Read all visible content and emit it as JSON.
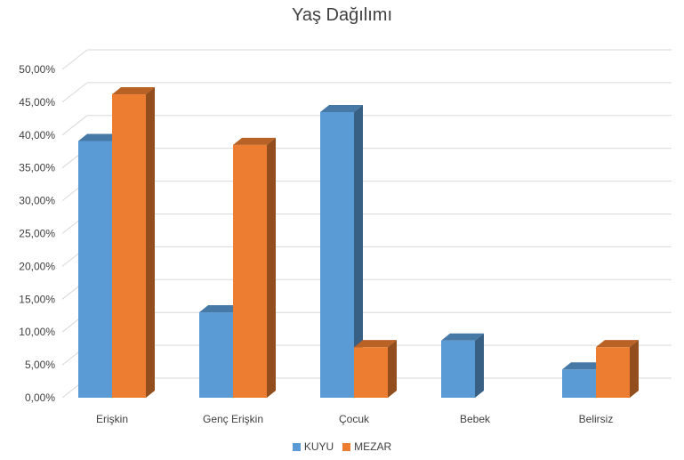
{
  "chart_data": {
    "type": "bar",
    "title": "Yaş Dağılımı",
    "categories": [
      "Erişkin",
      "Genç Erişkin",
      "Çocuk",
      "Bebek",
      "Belirsiz"
    ],
    "series": [
      {
        "name": "KUYU",
        "values": [
          39.1,
          13.0,
          43.5,
          8.7,
          4.3
        ],
        "color": "#5B9BD5"
      },
      {
        "name": "MEZAR",
        "values": [
          46.2,
          38.5,
          7.7,
          null,
          7.7
        ],
        "color": "#ED7D31"
      }
    ],
    "ylim": [
      0,
      50
    ],
    "yticks": [
      "0,00%",
      "5,00%",
      "10,00%",
      "15,00%",
      "20,00%",
      "25,00%",
      "30,00%",
      "35,00%",
      "40,00%",
      "45,00%",
      "50,00%"
    ],
    "grid": true,
    "legend_position": "bottom",
    "style": "3d-clustered-column"
  }
}
